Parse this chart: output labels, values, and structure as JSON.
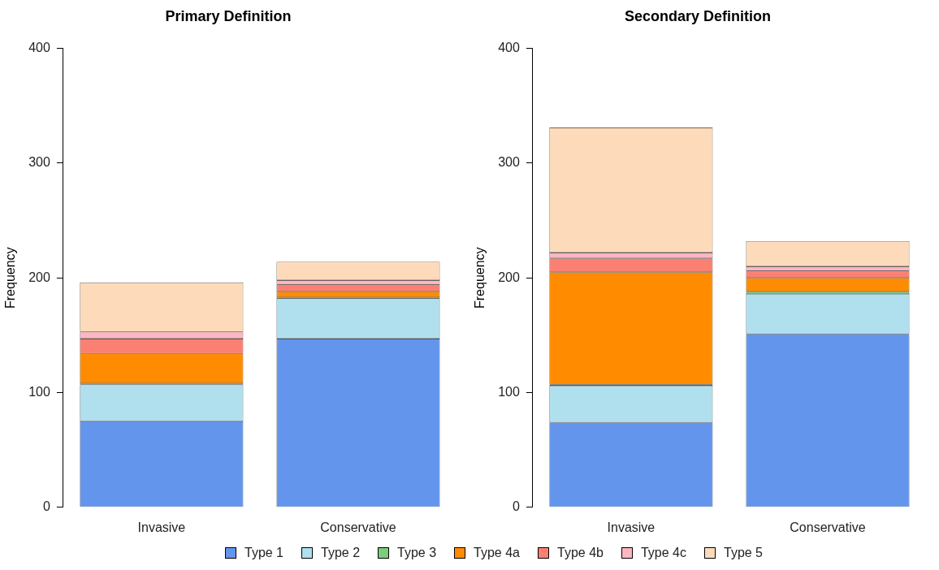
{
  "chart_data": [
    {
      "type": "bar",
      "title": "Primary Definition",
      "ylabel": "Frequency",
      "stacked": true,
      "grid": false,
      "legend": "bottom",
      "categories": [
        "Invasive",
        "Conservative"
      ],
      "ylim": [
        0,
        400
      ],
      "yticks": [
        0,
        100,
        200,
        300,
        400
      ],
      "series": [
        {
          "name": "Type 1",
          "color": "#6495ed",
          "values": [
            75,
            147
          ]
        },
        {
          "name": "Type 2",
          "color": "#b0dfed",
          "values": [
            32,
            35
          ]
        },
        {
          "name": "Type 3",
          "color": "#7ccd7c",
          "values": [
            1,
            1
          ]
        },
        {
          "name": "Type 4a",
          "color": "#ff8c00",
          "values": [
            26,
            5
          ]
        },
        {
          "name": "Type 4b",
          "color": "#fa8072",
          "values": [
            13,
            6
          ]
        },
        {
          "name": "Type 4c",
          "color": "#ffb6c1",
          "values": [
            6,
            4
          ]
        },
        {
          "name": "Type 5",
          "color": "#fddbba",
          "values": [
            43,
            16
          ]
        }
      ]
    },
    {
      "type": "bar",
      "title": "Secondary Definition",
      "ylabel": "Frequency",
      "stacked": true,
      "grid": false,
      "categories": [
        "Invasive",
        "Conservative"
      ],
      "ylim": [
        0,
        400
      ],
      "yticks": [
        0,
        100,
        200,
        300,
        400
      ],
      "series": [
        {
          "color": "#6495ed",
          "values": [
            74,
            151
          ]
        },
        {
          "color": "#b0dfed",
          "values": [
            32,
            35
          ]
        },
        {
          "color": "#7ccd7c",
          "values": [
            1,
            2
          ]
        },
        {
          "color": "#ff8c00",
          "values": [
            98,
            12
          ]
        },
        {
          "color": "#fa8072",
          "values": [
            12,
            6
          ]
        },
        {
          "color": "#ffb6c1",
          "values": [
            5,
            4
          ]
        },
        {
          "color": "#fddbba",
          "values": [
            109,
            22
          ]
        }
      ]
    }
  ]
}
